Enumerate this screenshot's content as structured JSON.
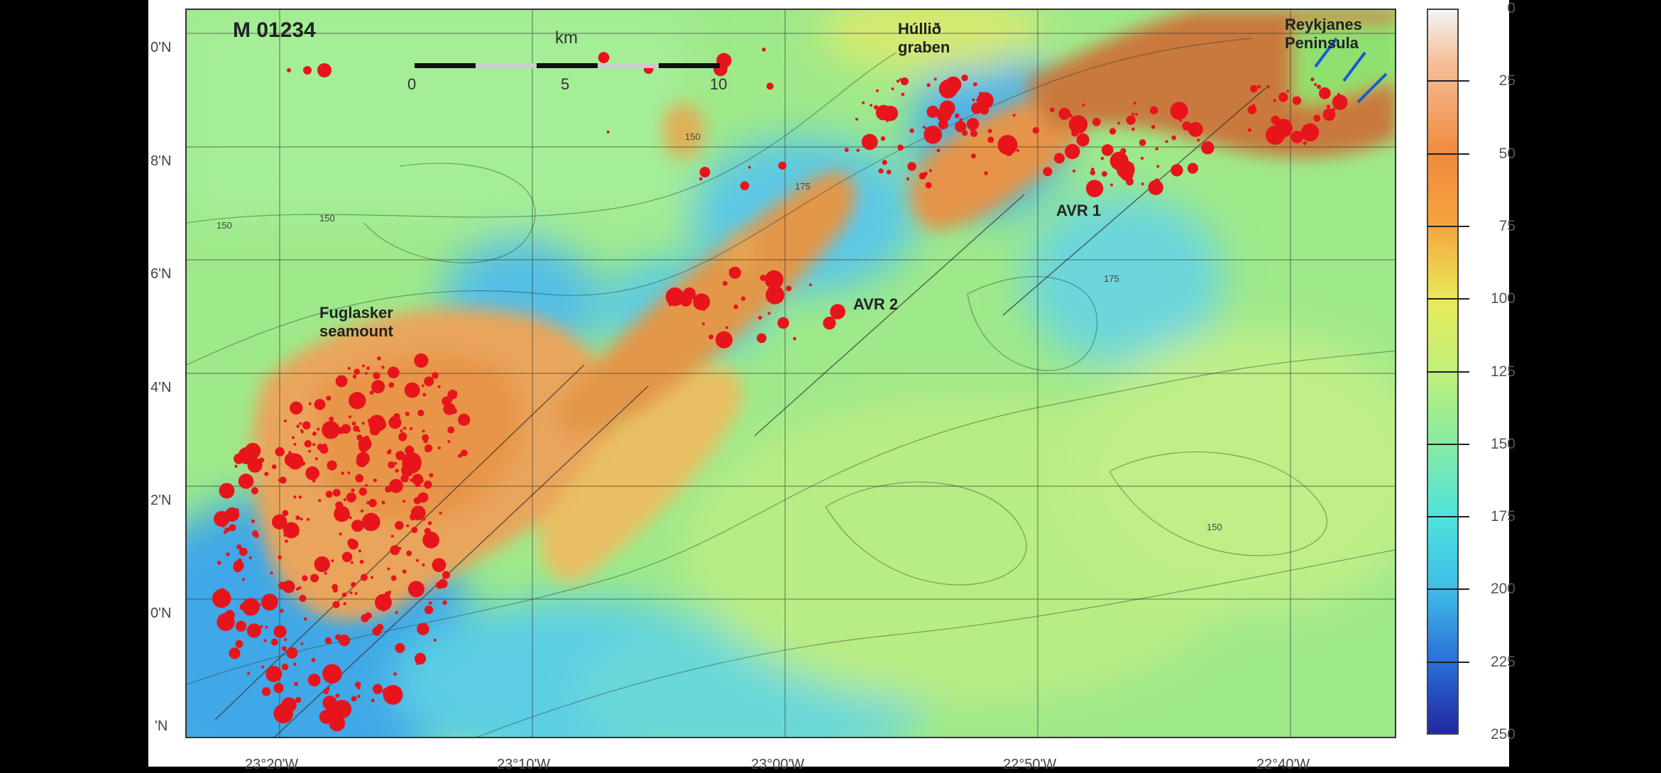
{
  "map": {
    "magnitude_legend": {
      "label": "M 01234",
      "magnitudes": [
        0,
        1,
        2,
        3,
        4
      ],
      "dot_color": "#e8141c"
    },
    "scale_bar": {
      "unit": "km",
      "ticks": [
        "0",
        "5",
        "10"
      ]
    },
    "place_labels": {
      "hullid_line1": "Húllið",
      "hullid_line2": "graben",
      "reykjanes_line1": "Reykjanes",
      "reykjanes_line2": "Peninsula",
      "avr1": "AVR 1",
      "avr2": "AVR 2",
      "fuglasker_line1": "Fuglasker",
      "fuglasker_line2": "seamount"
    },
    "contour_labels": [
      "150",
      "150",
      "150",
      "175",
      "175",
      "150"
    ],
    "lat_labels": [
      "0'N",
      "8'N",
      "6'N",
      "4'N",
      "2'N",
      "0'N",
      "'N"
    ],
    "lon_labels": [
      "23°20'W",
      "23°10'W",
      "23°00'W",
      "22°50'W",
      "22°40'W"
    ],
    "colors": {
      "shallow": "#e8863a",
      "mid": "#9ee98a",
      "deep": "#2a5fd0",
      "earthquake": "#e8141c"
    }
  },
  "colorbar": {
    "ticks": [
      "0",
      "25",
      "50",
      "75",
      "100",
      "125",
      "150",
      "175",
      "200",
      "225",
      "250"
    ],
    "range": [
      0,
      250
    ]
  }
}
